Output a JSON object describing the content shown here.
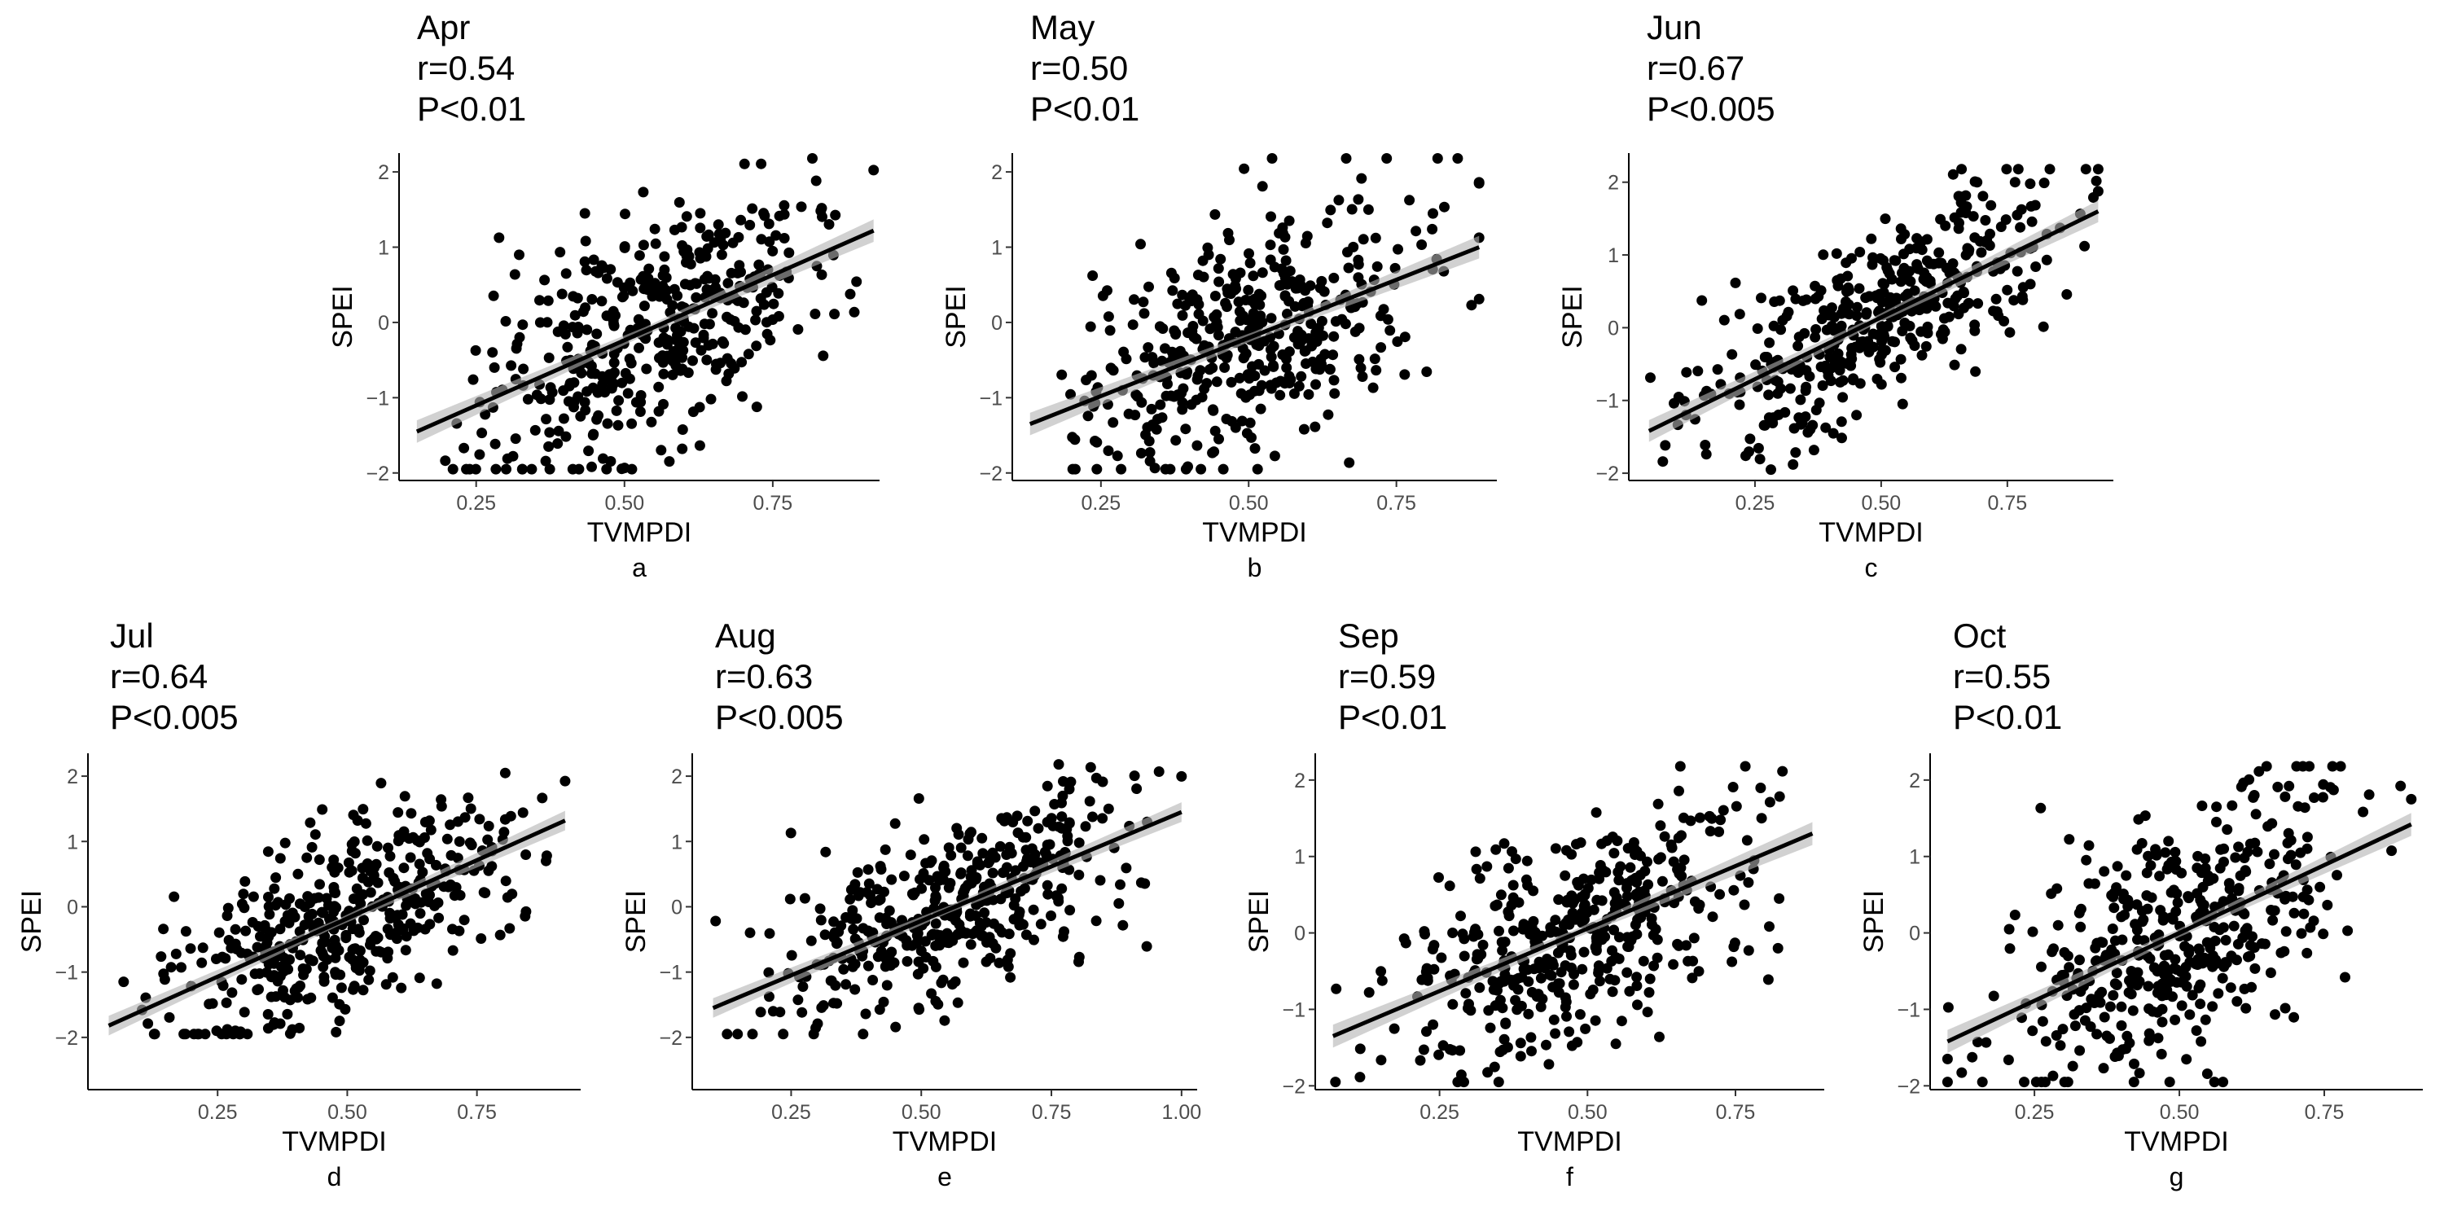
{
  "chart_data": [
    {
      "type": "scatter",
      "panel": "a",
      "title": "Apr",
      "r_label": "r=0.54",
      "p_label": "P<0.01",
      "xlabel": "TVMPDI",
      "ylabel": "SPEI",
      "xticks": [
        "0.25",
        "0.50",
        "0.75"
      ],
      "xtick_values": [
        0.25,
        0.5,
        0.75
      ],
      "yticks": [
        "2",
        "1",
        "0",
        "−1",
        "−2"
      ],
      "ytick_values": [
        2,
        1,
        0,
        -1,
        -2
      ],
      "xlim": [
        0.12,
        0.93
      ],
      "ylim": [
        -2.1,
        2.25
      ],
      "n_points": 430,
      "point_x_range": [
        0.15,
        0.92
      ],
      "r": 0.54,
      "fit_line": {
        "x": [
          0.15,
          0.92
        ],
        "y": [
          -1.45,
          1.22
        ]
      }
    },
    {
      "type": "scatter",
      "panel": "b",
      "title": "May",
      "r_label": "r=0.50",
      "p_label": "P<0.01",
      "xlabel": "TVMPDI",
      "ylabel": "SPEI",
      "xticks": [
        "0.25",
        "0.50",
        "0.75"
      ],
      "xtick_values": [
        0.25,
        0.5,
        0.75
      ],
      "yticks": [
        "2",
        "1",
        "0",
        "−1",
        "−2"
      ],
      "ytick_values": [
        2,
        1,
        0,
        -1,
        -2
      ],
      "xlim": [
        0.1,
        0.92
      ],
      "ylim": [
        -2.1,
        2.25
      ],
      "n_points": 430,
      "point_x_range": [
        0.13,
        0.89
      ],
      "r": 0.5,
      "fit_line": {
        "x": [
          0.13,
          0.89
        ],
        "y": [
          -1.35,
          1.0
        ]
      }
    },
    {
      "type": "scatter",
      "panel": "c",
      "title": "Jun",
      "r_label": "r=0.67",
      "p_label": "P<0.005",
      "xlabel": "TVMPDI",
      "ylabel": "SPEI",
      "xticks": [
        "0.25",
        "0.50",
        "0.75"
      ],
      "xtick_values": [
        0.25,
        0.5,
        0.75
      ],
      "yticks": [
        "2",
        "1",
        "0",
        "−1",
        "−2"
      ],
      "ytick_values": [
        2,
        1,
        0,
        -1,
        -2
      ],
      "xlim": [
        0.0,
        0.96
      ],
      "ylim": [
        -2.1,
        2.4
      ],
      "n_points": 430,
      "point_x_range": [
        0.04,
        0.93
      ],
      "r": 0.67,
      "fit_line": {
        "x": [
          0.04,
          0.93
        ],
        "y": [
          -1.42,
          1.6
        ]
      }
    },
    {
      "type": "scatter",
      "panel": "d",
      "title": "Jul",
      "r_label": "r=0.64",
      "p_label": "P<0.005",
      "xlabel": "TVMPDI",
      "ylabel": "SPEI",
      "xticks": [
        "0.25",
        "0.50",
        "0.75"
      ],
      "xtick_values": [
        0.25,
        0.5,
        0.75
      ],
      "yticks": [
        "2",
        "1",
        "0",
        "−1",
        "−2"
      ],
      "ytick_values": [
        2,
        1,
        0,
        -1,
        -2
      ],
      "xlim": [
        0.0,
        0.95
      ],
      "ylim": [
        -2.8,
        2.35
      ],
      "n_points": 430,
      "point_x_range": [
        0.04,
        0.92
      ],
      "r": 0.64,
      "fit_line": {
        "x": [
          0.04,
          0.92
        ],
        "y": [
          -1.82,
          1.32
        ]
      }
    },
    {
      "type": "scatter",
      "panel": "e",
      "title": "Aug",
      "r_label": "r=0.63",
      "p_label": "P<0.005",
      "xlabel": "TVMPDI",
      "ylabel": "SPEI",
      "xticks": [
        "0.25",
        "0.50",
        "0.75",
        "1.00"
      ],
      "xtick_values": [
        0.25,
        0.5,
        0.75,
        1.0
      ],
      "yticks": [
        "2",
        "1",
        "0",
        "−1",
        "−2"
      ],
      "ytick_values": [
        2,
        1,
        0,
        -1,
        -2
      ],
      "xlim": [
        0.06,
        1.03
      ],
      "ylim": [
        -2.8,
        2.35
      ],
      "n_points": 430,
      "point_x_range": [
        0.1,
        1.0
      ],
      "r": 0.63,
      "fit_line": {
        "x": [
          0.1,
          1.0
        ],
        "y": [
          -1.55,
          1.45
        ]
      }
    },
    {
      "type": "scatter",
      "panel": "f",
      "title": "Sep",
      "r_label": "r=0.59",
      "p_label": "P<0.01",
      "xlabel": "TVMPDI",
      "ylabel": "SPEI",
      "xticks": [
        "0.25",
        "0.50",
        "0.75"
      ],
      "xtick_values": [
        0.25,
        0.5,
        0.75
      ],
      "yticks": [
        "2",
        "1",
        "0",
        "−1",
        "−2"
      ],
      "ytick_values": [
        2,
        1,
        0,
        -1,
        -2
      ],
      "xlim": [
        0.04,
        0.9
      ],
      "ylim": [
        -2.05,
        2.35
      ],
      "n_points": 430,
      "point_x_range": [
        0.07,
        0.88
      ],
      "r": 0.59,
      "fit_line": {
        "x": [
          0.07,
          0.88
        ],
        "y": [
          -1.35,
          1.3
        ]
      }
    },
    {
      "type": "scatter",
      "panel": "g",
      "title": "Oct",
      "r_label": "r=0.55",
      "p_label": "P<0.01",
      "xlabel": "TVMPDI",
      "ylabel": "SPEI",
      "xticks": [
        "0.25",
        "0.50",
        "0.75"
      ],
      "xtick_values": [
        0.25,
        0.5,
        0.75
      ],
      "yticks": [
        "2",
        "1",
        "0",
        "−1",
        "−2"
      ],
      "ytick_values": [
        2,
        1,
        0,
        -1,
        -2
      ],
      "xlim": [
        0.07,
        0.92
      ],
      "ylim": [
        -2.05,
        2.35
      ],
      "n_points": 430,
      "point_x_range": [
        0.1,
        0.9
      ],
      "r": 0.55,
      "fit_line": {
        "x": [
          0.1,
          0.9
        ],
        "y": [
          -1.42,
          1.42
        ]
      }
    }
  ]
}
